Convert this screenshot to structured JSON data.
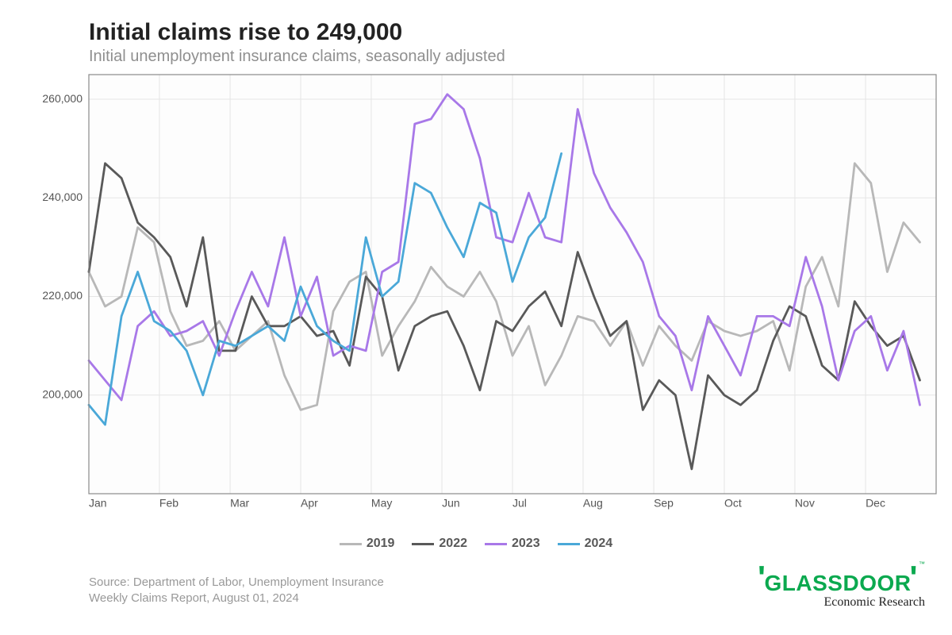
{
  "title": "Initial claims rise to 249,000",
  "subtitle": "Initial unemployment insurance claims, seasonally adjusted",
  "source_line1": "Source: Department of Labor, Unemployment Insurance",
  "source_line2": "Weekly Claims Report, August 01, 2024",
  "brand": {
    "name": "GLASSDOOR",
    "sub": "Economic Research"
  },
  "chart": {
    "type": "line",
    "background_color": "#ffffff",
    "plot_background": "#fdfdfd",
    "plot_border_color": "#8a8a8a",
    "grid_color": "#e5e5e5",
    "line_width": 2.8,
    "y": {
      "lim": [
        180000,
        265000
      ],
      "ticks": [
        200000,
        220000,
        240000,
        260000
      ],
      "tick_labels": [
        "200,000",
        "220,000",
        "240,000",
        "260,000"
      ],
      "label_fontsize": 14,
      "label_color": "#555555"
    },
    "x": {
      "lim": [
        1,
        53
      ],
      "ticks": [
        1,
        5.33,
        9.67,
        14,
        18.33,
        22.67,
        27,
        31.33,
        35.67,
        40,
        44.33,
        48.67
      ],
      "tick_labels": [
        "Jan",
        "Feb",
        "Mar",
        "Apr",
        "May",
        "Jun",
        "Jul",
        "Aug",
        "Sep",
        "Oct",
        "Nov",
        "Dec"
      ],
      "label_fontsize": 14,
      "label_color": "#555555"
    },
    "series": [
      {
        "name": "2019",
        "color": "#b8b8b8",
        "values": [
          225000,
          218000,
          220000,
          234000,
          231000,
          217000,
          210000,
          211000,
          215000,
          209000,
          212000,
          215000,
          204000,
          197000,
          198000,
          217000,
          223000,
          225000,
          208000,
          214000,
          219000,
          226000,
          222000,
          220000,
          225000,
          219000,
          208000,
          214000,
          202000,
          208000,
          216000,
          215000,
          210000,
          215000,
          206000,
          214000,
          210000,
          207000,
          215000,
          213000,
          212000,
          213000,
          215000,
          205000,
          222000,
          228000,
          218000,
          247000,
          243000,
          225000,
          235000,
          231000
        ]
      },
      {
        "name": "2022",
        "color": "#595959",
        "values": [
          225000,
          247000,
          244000,
          235000,
          232000,
          228000,
          218000,
          232000,
          209000,
          209000,
          220000,
          214000,
          214000,
          216000,
          212000,
          213000,
          206000,
          224000,
          220000,
          205000,
          214000,
          216000,
          217000,
          210000,
          201000,
          215000,
          213000,
          218000,
          221000,
          214000,
          229000,
          220000,
          212000,
          215000,
          197000,
          203000,
          200000,
          185000,
          204000,
          200000,
          198000,
          201000,
          211000,
          218000,
          216000,
          206000,
          203000,
          219000,
          214000,
          210000,
          212000,
          203000
        ]
      },
      {
        "name": "2023",
        "color": "#a878e8",
        "values": [
          207000,
          203000,
          199000,
          214000,
          217000,
          212000,
          213000,
          215000,
          208000,
          217000,
          225000,
          218000,
          232000,
          216000,
          224000,
          208000,
          210000,
          209000,
          225000,
          227000,
          255000,
          256000,
          261000,
          258000,
          248000,
          232000,
          231000,
          241000,
          232000,
          231000,
          258000,
          245000,
          238000,
          233000,
          227000,
          216000,
          212000,
          201000,
          216000,
          210000,
          204000,
          216000,
          216000,
          214000,
          228000,
          218000,
          203000,
          213000,
          216000,
          205000,
          213000,
          198000
        ]
      },
      {
        "name": "2024",
        "color": "#4aa8d8",
        "values": [
          198000,
          194000,
          216000,
          225000,
          215000,
          213000,
          209000,
          200000,
          211000,
          210000,
          212000,
          214000,
          211000,
          222000,
          214000,
          211000,
          209000,
          232000,
          220000,
          223000,
          243000,
          241000,
          234000,
          228000,
          239000,
          237000,
          223000,
          232000,
          236000,
          249000
        ]
      }
    ],
    "legend": {
      "items": [
        {
          "label": "2019",
          "color": "#b8b8b8"
        },
        {
          "label": "2022",
          "color": "#595959"
        },
        {
          "label": "2023",
          "color": "#a878e8"
        },
        {
          "label": "2024",
          "color": "#4aa8d8"
        }
      ],
      "fontsize": 16,
      "color": "#585858"
    }
  }
}
